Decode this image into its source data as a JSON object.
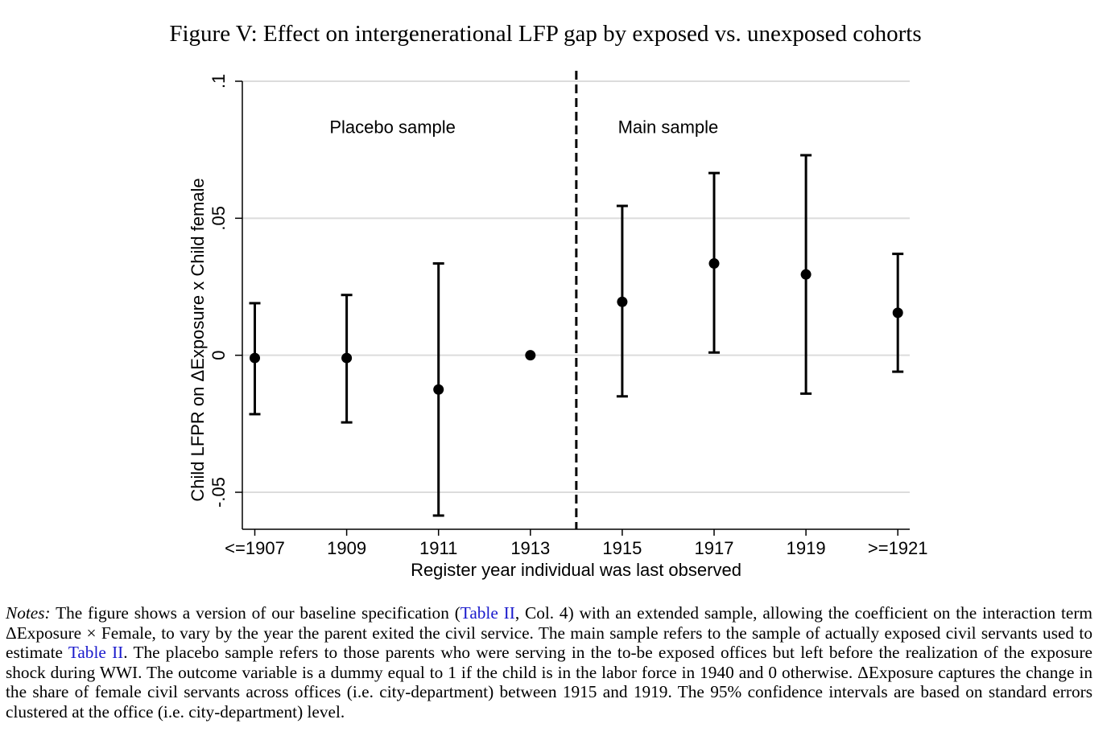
{
  "figure_title": "Figure V: Effect on intergenerational LFP gap by exposed vs. unexposed cohorts",
  "chart_data": {
    "type": "scatter",
    "subtype": "coefficient plot with 95% confidence intervals",
    "xlabel": "Register year individual was last observed",
    "ylabel": "Child LFPR on ΔExposure x Child female",
    "categories": [
      "<=1907",
      "1909",
      "1911",
      "1913",
      "1915",
      "1917",
      "1919",
      ">=1921"
    ],
    "estimates": [
      -0.001,
      -0.001,
      -0.0125,
      0.0,
      0.0195,
      0.0335,
      0.0295,
      0.0155
    ],
    "ci_lower": [
      -0.0215,
      -0.0245,
      -0.0585,
      null,
      -0.015,
      0.001,
      -0.014,
      -0.006
    ],
    "ci_upper": [
      0.019,
      0.022,
      0.0335,
      null,
      0.0545,
      0.0665,
      0.073,
      0.037
    ],
    "y_ticks": [
      -0.05,
      0,
      0.05,
      0.1
    ],
    "y_tick_labels": [
      "-.05",
      "0",
      ".05",
      ".1"
    ],
    "ylim": [
      -0.0635,
      0.1
    ],
    "grid": true,
    "divider_after_category": "1913",
    "annotations": [
      {
        "text": "Placebo sample",
        "x_between": [
          "1909",
          "1911"
        ],
        "y": 0.081
      },
      {
        "text": "Main sample",
        "x_between": [
          "1915",
          "1917"
        ],
        "y": 0.081
      }
    ]
  },
  "notes": {
    "label": "Notes:",
    "segments": [
      {
        "text": " The figure shows a version of our baseline specification (",
        "link": false
      },
      {
        "text": "Table II",
        "link": true
      },
      {
        "text": ", Col.  4) with an extended sample, allowing the coefficient on the interaction term ΔExposure × Female, to vary by the year the parent exited the civil service. The main sample refers to the sample of actually exposed civil servants used to estimate ",
        "link": false
      },
      {
        "text": "Table II",
        "link": true
      },
      {
        "text": ". The placebo sample refers to those parents who were serving in the to-be exposed offices but left before the realization of the exposure shock during WWI. The outcome variable is a dummy equal to 1 if the child is in the labor force in 1940 and 0 otherwise. ΔExposure captures the change in the share of female civil servants across offices (i.e. city-department) between 1915 and 1919. The 95% confidence intervals are based on standard errors clustered at the office (i.e. city-department) level.",
        "link": false
      }
    ]
  }
}
